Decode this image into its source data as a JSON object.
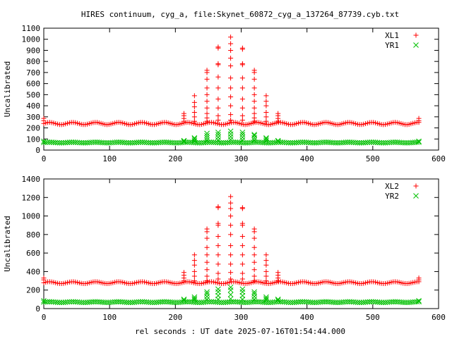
{
  "page": {
    "title": "HIRES continuum, cyg_a, file:Skynet_60872_cyg_a_137264_87739.cyb.txt",
    "xlabel": "rel seconds : UT date 2025-07-16T01:54:44.000"
  },
  "colors": {
    "red": "#ff0000",
    "green": "#00c000",
    "axis": "#000000"
  },
  "chart_data": [
    {
      "type": "scatter",
      "ylabel": "Uncalibrated",
      "xlim": [
        0,
        600
      ],
      "ylim": [
        0,
        1100
      ],
      "xticks": [
        0,
        100,
        200,
        300,
        400,
        500,
        600
      ],
      "yticks": [
        0,
        100,
        200,
        300,
        400,
        500,
        600,
        700,
        800,
        900,
        1000,
        1100
      ],
      "legend_position": "top-right",
      "grid": false,
      "series": [
        {
          "name": "XL1",
          "marker": "plus",
          "color": "#ff0000",
          "baseline": {
            "x_start": 0,
            "x_end": 570,
            "x_step": 3,
            "mean": 240,
            "ripple": 10,
            "ripple_period": 35
          },
          "peaks": [
            {
              "x": 213,
              "values": [
                260,
                285,
                310,
                330
              ]
            },
            {
              "x": 229,
              "values": [
                260,
                300,
                340,
                390,
                430,
                490
              ]
            },
            {
              "x": 248,
              "values": [
                260,
                290,
                330,
                380,
                440,
                500,
                560,
                640,
                700,
                720
              ]
            },
            {
              "x": 265,
              "values": [
                270,
                310,
                380,
                460,
                560,
                660,
                770,
                780,
                920,
                930
              ]
            },
            {
              "x": 284,
              "values": [
                270,
                320,
                400,
                480,
                560,
                650,
                760,
                830,
                900,
                960,
                1020
              ]
            },
            {
              "x": 302,
              "values": [
                270,
                310,
                380,
                460,
                560,
                650,
                770,
                780,
                910,
                920
              ]
            },
            {
              "x": 320,
              "values": [
                260,
                290,
                330,
                380,
                440,
                500,
                560,
                640,
                700,
                720
              ]
            },
            {
              "x": 338,
              "values": [
                260,
                300,
                340,
                400,
                440,
                490
              ]
            },
            {
              "x": 356,
              "values": [
                260,
                285,
                310,
                330
              ]
            }
          ],
          "endpoints": [
            {
              "x": 0,
              "values": [
                265,
                285
              ]
            },
            {
              "x": 570,
              "values": [
                265,
                285
              ]
            }
          ]
        },
        {
          "name": "YR1",
          "marker": "cross",
          "color": "#00c000",
          "baseline": {
            "x_start": 0,
            "x_end": 570,
            "x_step": 3,
            "mean": 68,
            "ripple": 3,
            "ripple_period": 35
          },
          "peaks": [
            {
              "x": 213,
              "values": [
                80,
                85
              ]
            },
            {
              "x": 229,
              "values": [
                85,
                100,
                110
              ]
            },
            {
              "x": 248,
              "values": [
                90,
                110,
                130,
                150
              ]
            },
            {
              "x": 265,
              "values": [
                90,
                115,
                140,
                160
              ]
            },
            {
              "x": 284,
              "values": [
                95,
                120,
                145,
                170
              ]
            },
            {
              "x": 302,
              "values": [
                90,
                115,
                140,
                160
              ]
            },
            {
              "x": 320,
              "values": [
                90,
                110,
                130,
                140
              ]
            },
            {
              "x": 338,
              "values": [
                85,
                100,
                110
              ]
            },
            {
              "x": 356,
              "values": [
                80,
                85
              ]
            }
          ],
          "endpoints": [
            {
              "x": 0,
              "values": [
                80
              ]
            },
            {
              "x": 570,
              "values": [
                80
              ]
            }
          ]
        }
      ]
    },
    {
      "type": "scatter",
      "ylabel": "Uncalibrated",
      "xlim": [
        0,
        600
      ],
      "ylim": [
        0,
        1400
      ],
      "xticks": [
        0,
        100,
        200,
        300,
        400,
        500,
        600
      ],
      "yticks": [
        0,
        200,
        400,
        600,
        800,
        1000,
        1200,
        1400
      ],
      "legend_position": "top-right",
      "grid": false,
      "series": [
        {
          "name": "XL2",
          "marker": "plus",
          "color": "#ff0000",
          "baseline": {
            "x_start": 0,
            "x_end": 570,
            "x_step": 3,
            "mean": 280,
            "ripple": 10,
            "ripple_period": 35
          },
          "peaks": [
            {
              "x": 213,
              "values": [
                300,
                330,
                360,
                390
              ]
            },
            {
              "x": 229,
              "values": [
                300,
                350,
                400,
                470,
                520,
                580
              ]
            },
            {
              "x": 248,
              "values": [
                300,
                350,
                420,
                500,
                580,
                660,
                760,
                830,
                860
              ]
            },
            {
              "x": 265,
              "values": [
                320,
                380,
                480,
                580,
                680,
                780,
                900,
                920,
                1090,
                1100
              ]
            },
            {
              "x": 284,
              "values": [
                320,
                390,
                480,
                580,
                680,
                800,
                900,
                1000,
                1080,
                1140,
                1210
              ]
            },
            {
              "x": 302,
              "values": [
                320,
                380,
                480,
                580,
                680,
                780,
                900,
                920,
                1080,
                1090
              ]
            },
            {
              "x": 320,
              "values": [
                300,
                350,
                420,
                500,
                580,
                660,
                760,
                830,
                860
              ]
            },
            {
              "x": 338,
              "values": [
                300,
                350,
                400,
                470,
                520,
                580
              ]
            },
            {
              "x": 356,
              "values": [
                300,
                330,
                360,
                390
              ]
            }
          ],
          "endpoints": [
            {
              "x": 0,
              "values": [
                310,
                330
              ]
            },
            {
              "x": 570,
              "values": [
                310,
                330
              ]
            }
          ]
        },
        {
          "name": "YR2",
          "marker": "cross",
          "color": "#00c000",
          "baseline": {
            "x_start": 0,
            "x_end": 570,
            "x_step": 3,
            "mean": 70,
            "ripple": 4,
            "ripple_period": 35
          },
          "peaks": [
            {
              "x": 213,
              "values": [
                90,
                100
              ]
            },
            {
              "x": 229,
              "values": [
                95,
                110,
                125
              ]
            },
            {
              "x": 248,
              "values": [
                100,
                130,
                160,
                180
              ]
            },
            {
              "x": 265,
              "values": [
                100,
                140,
                180,
                210
              ]
            },
            {
              "x": 284,
              "values": [
                105,
                150,
                200,
                230
              ]
            },
            {
              "x": 302,
              "values": [
                100,
                140,
                180,
                210
              ]
            },
            {
              "x": 320,
              "values": [
                100,
                130,
                160,
                180
              ]
            },
            {
              "x": 338,
              "values": [
                95,
                110,
                125
              ]
            },
            {
              "x": 356,
              "values": [
                90,
                100
              ]
            }
          ],
          "endpoints": [
            {
              "x": 0,
              "values": [
                85
              ]
            },
            {
              "x": 570,
              "values": [
                85
              ]
            }
          ]
        }
      ]
    }
  ]
}
